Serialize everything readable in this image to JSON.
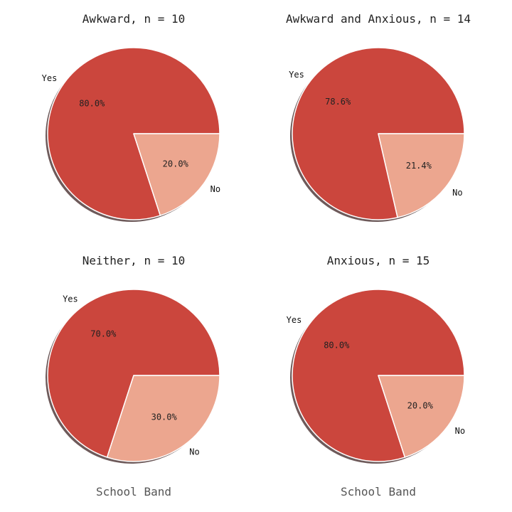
{
  "colors": {
    "yes": "#cb463d",
    "no": "#eca68f",
    "shadow": "#6e5a5a",
    "edge": "#ffffff"
  },
  "chart_data": [
    {
      "type": "pie",
      "title": "Awkward, n = 10",
      "xlabel": "",
      "slices": [
        {
          "label": "Yes",
          "value": 80.0,
          "pct_label": "80.0%"
        },
        {
          "label": "No",
          "value": 20.0,
          "pct_label": "20.0%"
        }
      ],
      "shadow": true
    },
    {
      "type": "pie",
      "title": "Awkward and Anxious, n = 14",
      "xlabel": "",
      "slices": [
        {
          "label": "Yes",
          "value": 78.6,
          "pct_label": "78.6%"
        },
        {
          "label": "No",
          "value": 21.4,
          "pct_label": "21.4%"
        }
      ],
      "shadow": true
    },
    {
      "type": "pie",
      "title": "Neither, n = 10",
      "xlabel": "School Band",
      "slices": [
        {
          "label": "Yes",
          "value": 70.0,
          "pct_label": "70.0%"
        },
        {
          "label": "No",
          "value": 30.0,
          "pct_label": "30.0%"
        }
      ],
      "shadow": true
    },
    {
      "type": "pie",
      "title": "Anxious, n = 15",
      "xlabel": "School Band",
      "slices": [
        {
          "label": "Yes",
          "value": 80.0,
          "pct_label": "80.0%"
        },
        {
          "label": "No",
          "value": 20.0,
          "pct_label": "20.0%"
        }
      ],
      "shadow": true
    }
  ]
}
